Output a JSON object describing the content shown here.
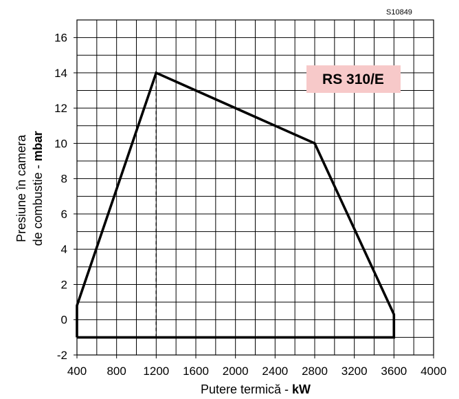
{
  "figure_code": "S10849",
  "chart_data": {
    "type": "line",
    "model_label": "RS 310/E",
    "xlabel_prefix": "Putere termică - ",
    "xlabel_unit": "kW",
    "ylabel_line1": "Presiune în camera",
    "ylabel_line2_prefix": "de combustie - ",
    "ylabel_line2_unit": "mbar",
    "xlim": [
      400,
      4000
    ],
    "ylim": [
      -2,
      17
    ],
    "x_ticks": [
      400,
      800,
      1200,
      1600,
      2000,
      2400,
      2800,
      3200,
      3600,
      4000
    ],
    "y_ticks": [
      -2,
      0,
      2,
      4,
      6,
      8,
      10,
      12,
      14,
      16
    ],
    "grid": true,
    "series": [
      {
        "style": "solid",
        "points": [
          [
            400,
            -1
          ],
          [
            400,
            0.8
          ],
          [
            1200,
            14
          ],
          [
            2800,
            10
          ],
          [
            3600,
            0.3
          ],
          [
            3600,
            -1
          ],
          [
            400,
            -1
          ]
        ]
      },
      {
        "style": "dashed",
        "points": [
          [
            1200,
            -1
          ],
          [
            1200,
            14
          ]
        ]
      }
    ],
    "colors": {
      "line": "#000000",
      "grid": "#000000",
      "label_box": "#f7c9c9"
    }
  }
}
